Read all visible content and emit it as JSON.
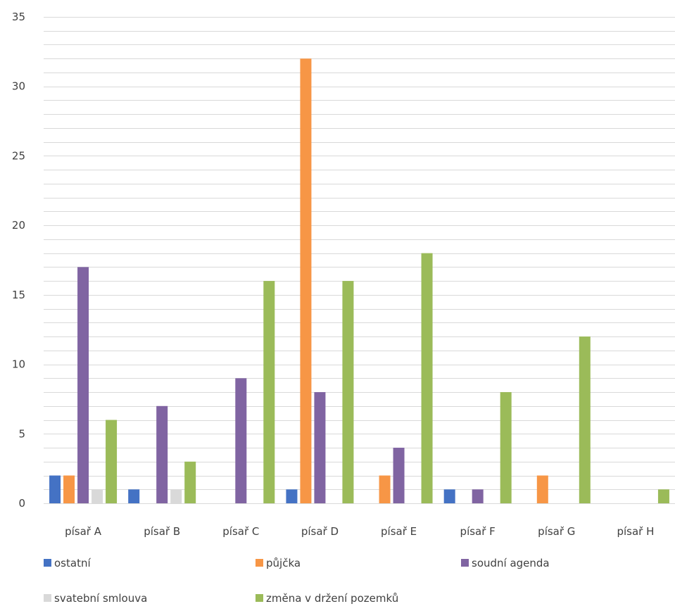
{
  "chart_data": {
    "type": "bar",
    "categories": [
      "písař A",
      "písař B",
      "písař C",
      "písař D",
      "písař E",
      "písař F",
      "písař G",
      "písař H"
    ],
    "series": [
      {
        "name": "ostatní",
        "color": "#4472C4",
        "values": [
          2,
          1,
          0,
          1,
          0,
          1,
          0,
          0
        ]
      },
      {
        "name": "půjčka",
        "color": "#F79646",
        "values": [
          2,
          0,
          0,
          32,
          2,
          0,
          2,
          0
        ]
      },
      {
        "name": "soudní agenda",
        "color": "#8064A2",
        "values": [
          17,
          7,
          9,
          8,
          4,
          1,
          0,
          0
        ]
      },
      {
        "name": "svatební smlouva",
        "color": "#D9D9D9",
        "values": [
          1,
          1,
          0,
          0,
          0,
          0,
          0,
          0
        ]
      },
      {
        "name": "změna v držení pozemků",
        "color": "#9BBB59",
        "values": [
          6,
          3,
          16,
          16,
          18,
          8,
          12,
          1
        ]
      }
    ],
    "ylim": [
      0,
      35
    ],
    "yticks": [
      "0",
      "5",
      "10",
      "15",
      "20",
      "25",
      "30",
      "35"
    ],
    "grid": true,
    "legend_position": "bottom"
  }
}
